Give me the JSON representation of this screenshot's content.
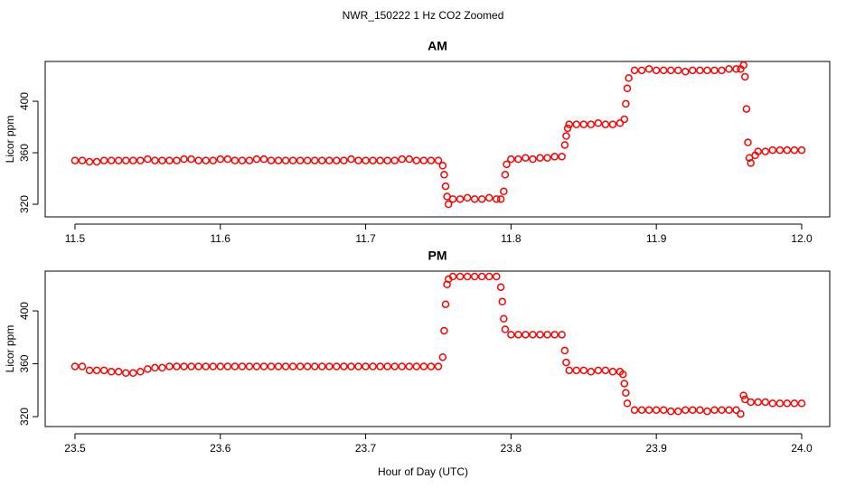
{
  "title": "NWR_150222  1 Hz CO2 Zoomed",
  "xlabel": "Hour of Day (UTC)",
  "chart_data": [
    {
      "type": "scatter",
      "title": "AM",
      "ylabel": "Licor ppm",
      "color": "#ff0000",
      "xlim": [
        11.4795,
        12.0193
      ],
      "ylim": [
        310.2,
        430.9
      ],
      "xticks": [
        11.5,
        11.6,
        11.7,
        11.8,
        11.9,
        {
          "value": 12,
          "label": "12.0"
        }
      ],
      "yticks": [
        320,
        360,
        400
      ],
      "x": [
        11.5,
        11.505,
        11.51,
        11.515,
        11.52,
        11.525,
        11.53,
        11.535,
        11.54,
        11.545,
        11.55,
        11.555,
        11.56,
        11.565,
        11.57,
        11.575,
        11.58,
        11.585,
        11.59,
        11.595,
        11.6,
        11.605,
        11.61,
        11.615,
        11.62,
        11.625,
        11.63,
        11.635,
        11.64,
        11.645,
        11.65,
        11.655,
        11.66,
        11.665,
        11.67,
        11.675,
        11.68,
        11.685,
        11.69,
        11.695,
        11.7,
        11.705,
        11.71,
        11.715,
        11.72,
        11.725,
        11.73,
        11.735,
        11.74,
        11.745,
        11.75,
        11.753,
        11.754,
        11.755,
        11.756,
        11.757,
        11.76,
        11.765,
        11.77,
        11.775,
        11.78,
        11.785,
        11.79,
        11.793,
        11.795,
        11.796,
        11.797,
        11.8,
        11.805,
        11.81,
        11.815,
        11.82,
        11.825,
        11.83,
        11.835,
        11.837,
        11.838,
        11.839,
        11.84,
        11.845,
        11.85,
        11.855,
        11.86,
        11.865,
        11.87,
        11.875,
        11.878,
        11.879,
        11.88,
        11.881,
        11.885,
        11.89,
        11.895,
        11.9,
        11.905,
        11.91,
        11.915,
        11.92,
        11.925,
        11.93,
        11.935,
        11.94,
        11.945,
        11.95,
        11.955,
        11.958,
        11.96,
        11.961,
        11.962,
        11.963,
        11.964,
        11.965,
        11.968,
        11.97,
        11.975,
        11.98,
        11.985,
        11.99,
        11.995,
        12.0
      ],
      "values": [
        354,
        354,
        353,
        353,
        354,
        354,
        354,
        354,
        354,
        354,
        355,
        354,
        354,
        354,
        354,
        355,
        355,
        354,
        354,
        354,
        355,
        355,
        354,
        354,
        354,
        355,
        355,
        354,
        354,
        354,
        354,
        354,
        354,
        354,
        354,
        354,
        354,
        354,
        355,
        354,
        354,
        354,
        354,
        354,
        354,
        355,
        355,
        354,
        354,
        354,
        354,
        350,
        343,
        334,
        326,
        320,
        324,
        324,
        325,
        324,
        324,
        325,
        324,
        324,
        330,
        343,
        351,
        355,
        355,
        356,
        355,
        356,
        356,
        357,
        357,
        366,
        373,
        379,
        382,
        382,
        382,
        382,
        383,
        382,
        382,
        383,
        386,
        398,
        410,
        418,
        424,
        424,
        425,
        424,
        424,
        424,
        424,
        423,
        424,
        424,
        424,
        424,
        424,
        425,
        425,
        425,
        428,
        419,
        394,
        368,
        356,
        352,
        358,
        361,
        361,
        362,
        362,
        362,
        362,
        362
      ]
    },
    {
      "type": "scatter",
      "title": "PM",
      "ylabel": "Licor ppm",
      "color": "#ff0000",
      "xlim": [
        23.4795,
        24.0193
      ],
      "ylim": [
        312.5,
        430.1
      ],
      "xticks": [
        23.5,
        23.6,
        23.7,
        23.8,
        23.9,
        {
          "value": 24,
          "label": "24.0"
        }
      ],
      "yticks": [
        320,
        360,
        400
      ],
      "x": [
        23.5,
        23.505,
        23.51,
        23.515,
        23.52,
        23.525,
        23.53,
        23.535,
        23.54,
        23.545,
        23.55,
        23.555,
        23.56,
        23.565,
        23.57,
        23.575,
        23.58,
        23.585,
        23.59,
        23.595,
        23.6,
        23.605,
        23.61,
        23.615,
        23.62,
        23.625,
        23.63,
        23.635,
        23.64,
        23.645,
        23.65,
        23.655,
        23.66,
        23.665,
        23.67,
        23.675,
        23.68,
        23.685,
        23.69,
        23.695,
        23.7,
        23.705,
        23.71,
        23.715,
        23.72,
        23.725,
        23.73,
        23.735,
        23.74,
        23.745,
        23.75,
        23.753,
        23.754,
        23.755,
        23.756,
        23.757,
        23.76,
        23.765,
        23.77,
        23.775,
        23.78,
        23.785,
        23.79,
        23.793,
        23.794,
        23.795,
        23.796,
        23.8,
        23.805,
        23.81,
        23.815,
        23.82,
        23.825,
        23.83,
        23.835,
        23.837,
        23.838,
        23.84,
        23.845,
        23.85,
        23.855,
        23.86,
        23.865,
        23.87,
        23.875,
        23.877,
        23.878,
        23.879,
        23.88,
        23.885,
        23.89,
        23.895,
        23.9,
        23.905,
        23.91,
        23.915,
        23.92,
        23.925,
        23.93,
        23.935,
        23.94,
        23.945,
        23.95,
        23.955,
        23.958,
        23.96,
        23.961,
        23.965,
        23.97,
        23.975,
        23.98,
        23.985,
        23.99,
        23.995,
        24.0
      ],
      "values": [
        358,
        358,
        355,
        355,
        355,
        354,
        354,
        353,
        353,
        354,
        356,
        357,
        357,
        358,
        358,
        358,
        358,
        358,
        358,
        358,
        358,
        358,
        358,
        358,
        358,
        358,
        358,
        358,
        358,
        358,
        358,
        358,
        358,
        358,
        358,
        358,
        358,
        358,
        358,
        358,
        358,
        358,
        358,
        358,
        358,
        358,
        358,
        358,
        358,
        358,
        358,
        365,
        385,
        405,
        420,
        424,
        426,
        426,
        426,
        426,
        426,
        426,
        426,
        418,
        407,
        394,
        386,
        382,
        382,
        382,
        382,
        382,
        382,
        382,
        382,
        370,
        361,
        355,
        355,
        355,
        354,
        355,
        355,
        354,
        354,
        352,
        345,
        338,
        330,
        325,
        325,
        325,
        325,
        325,
        324,
        324,
        325,
        325,
        325,
        324,
        325,
        325,
        325,
        325,
        322,
        336,
        333,
        331,
        331,
        331,
        330,
        330,
        330,
        330,
        330
      ]
    }
  ]
}
